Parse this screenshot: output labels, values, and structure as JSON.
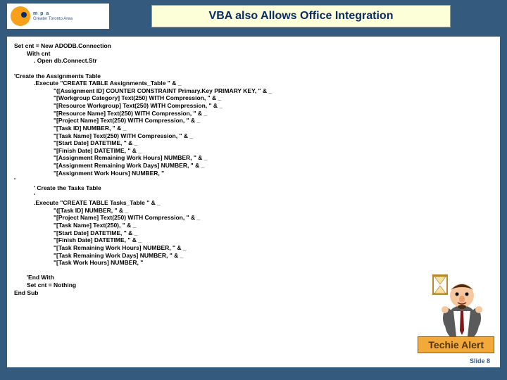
{
  "colors": {
    "slide_bg": "#345a7e",
    "title_bg": "#fdffd9",
    "title_text": "#0a2a66",
    "content_bg": "#ffffff",
    "code_text": "#000000",
    "badge_bg": "#f3a83a",
    "badge_border": "#8a5a10",
    "badge_text": "#553500",
    "logo_orange": "#f7a11b",
    "logo_blue": "#0a2a66"
  },
  "logo": {
    "primary": "m p a",
    "dot_color": "#0a2a66",
    "secondary": "Greater Toronto Area"
  },
  "title": "VBA also Allows Office Integration",
  "code_lines": [
    {
      "indent": 0,
      "text": "Set cnt = New ADODB.Connection"
    },
    {
      "indent": 1,
      "text": "With cnt"
    },
    {
      "indent": 2,
      "text": ". Open db.Connect.Str"
    },
    {
      "indent": 0,
      "text": ""
    },
    {
      "indent": 0,
      "text": "'Create the Assignments Table"
    },
    {
      "indent": 2,
      "text": ".Execute \"CREATE TABLE Assignments_Table \" & _"
    },
    {
      "indent": 3,
      "text": "\"([Assignment ID] COUNTER CONSTRAINT Primary.Key PRIMARY KEY, \" & _"
    },
    {
      "indent": 3,
      "text": "\"[Workgroup Category] Text(250) WITH Compression, \" & _"
    },
    {
      "indent": 3,
      "text": "\"[Resource Workgroup] Text(250) WITH Compression, \" & _"
    },
    {
      "indent": 3,
      "text": "\"[Resource Name] Text(250) WITH Compression, \" & _"
    },
    {
      "indent": 3,
      "text": "\"[Project Name] Text(250) WITH Compression, \" & _"
    },
    {
      "indent": 3,
      "text": "\"[Task ID] NUMBER, \" & _"
    },
    {
      "indent": 3,
      "text": "\"[Task Name] Text(250) WITH Compression, \" & _"
    },
    {
      "indent": 3,
      "text": "\"[Start Date] DATETIME, \" & _"
    },
    {
      "indent": 3,
      "text": "\"[Finish Date] DATETIME, \" & _"
    },
    {
      "indent": 3,
      "text": "\"[Assignment Remaining Work Hours] NUMBER, \" & _"
    },
    {
      "indent": 3,
      "text": "\"[Assignment Remaining Work Days] NUMBER, \" & _"
    },
    {
      "indent": 3,
      "text": "\"[Assignment Work Hours] NUMBER, \""
    },
    {
      "indent": 0,
      "text": "'"
    },
    {
      "indent": 2,
      "text": "' Create the Tasks Table"
    },
    {
      "indent": 2,
      "text": "'"
    },
    {
      "indent": 2,
      "text": ".Execute \"CREATE TABLE Tasks_Table \" & _"
    },
    {
      "indent": 3,
      "text": "\"([Task ID] NUMBER, \" & _"
    },
    {
      "indent": 3,
      "text": "\"[Project Name] Text(250) WITH Compression, \" & _"
    },
    {
      "indent": 3,
      "text": "\"[Task Name] Text(250), \" & _"
    },
    {
      "indent": 3,
      "text": "\"[Start Date] DATETIME, \" & _"
    },
    {
      "indent": 3,
      "text": "\"[Finish Date] DATETIME, \" & _"
    },
    {
      "indent": 3,
      "text": "\"[Task Remaining Work Hours] NUMBER, \" & _"
    },
    {
      "indent": 3,
      "text": "\"[Task Remaining Work Days] NUMBER, \" & _"
    },
    {
      "indent": 3,
      "text": "\"[Task Work Hours] NUMBER, \""
    },
    {
      "indent": 0,
      "text": ""
    },
    {
      "indent": 1,
      "text": "'End With"
    },
    {
      "indent": 1,
      "text": "Set cnt = Nothing"
    },
    {
      "indent": 0,
      "text": "End Sub"
    }
  ],
  "cartoon": {
    "head_color": "#f7c8a0",
    "suit_color": "#5a5a5a",
    "shirt_color": "#ffffff",
    "tie_color": "#7a1a1a",
    "hourglass_frame": "#b58a2f",
    "hourglass_sand": "#f5e2a0"
  },
  "badge": "Techie Alert",
  "slide_number": "Slide 8"
}
